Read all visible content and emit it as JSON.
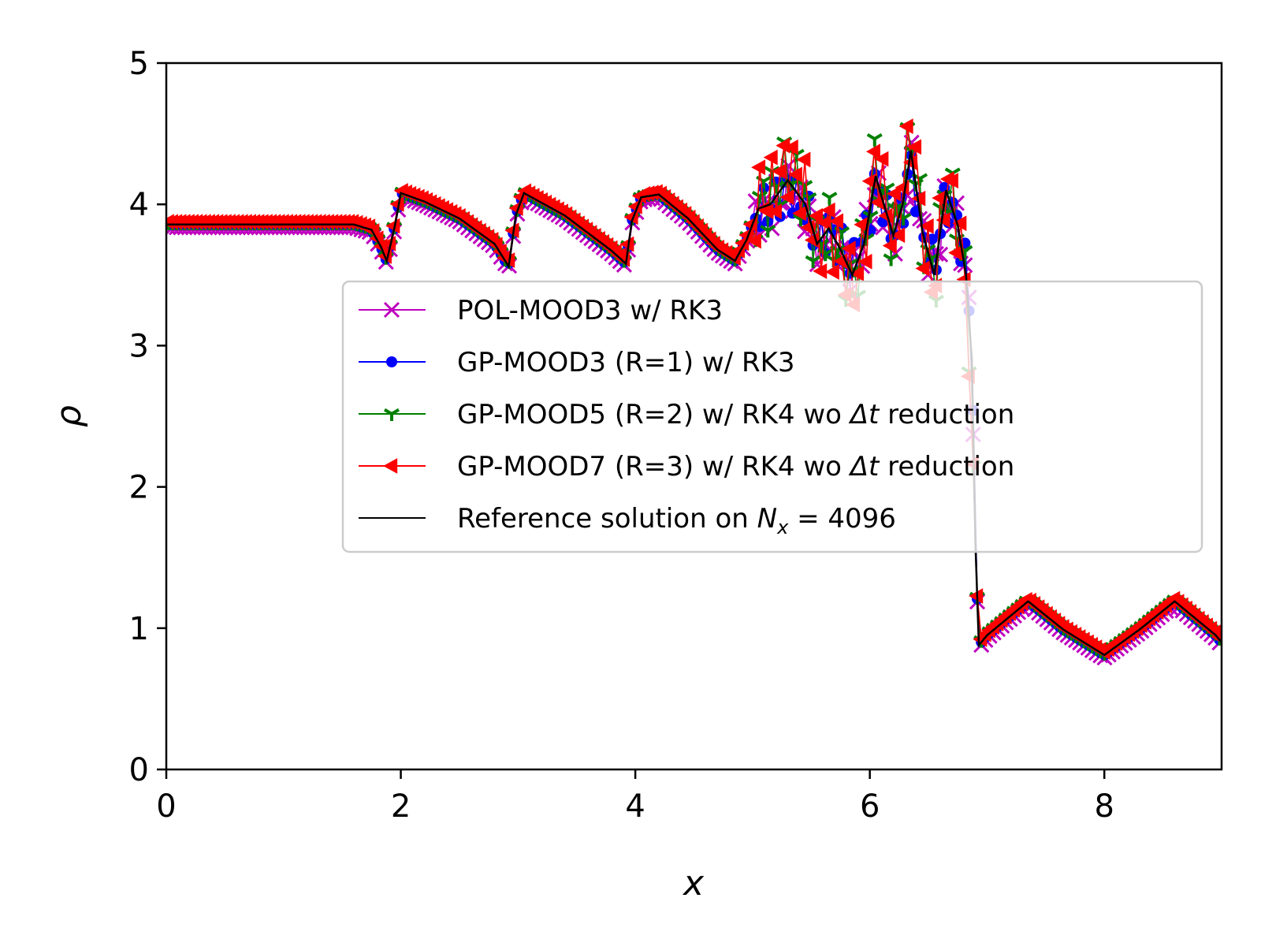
{
  "chart_data": {
    "type": "line",
    "title": "",
    "xlabel": "x",
    "ylabel": "ρ",
    "xlim": [
      0,
      9
    ],
    "ylim": [
      0,
      5
    ],
    "xticks": [
      0,
      2,
      4,
      6,
      8
    ],
    "yticks": [
      0,
      1,
      2,
      3,
      4,
      5
    ],
    "grid": false,
    "legend_position": "center-right",
    "legend": [
      {
        "label": "POL-MOOD3 w/ RK3",
        "color": "#bf00bf",
        "marker": "x"
      },
      {
        "label": "GP-MOOD3 (R=1) w/ RK3",
        "color": "#0000ff",
        "marker": "circle"
      },
      {
        "label_parts": [
          "GP-MOOD5 (R=2) w/ RK4 wo ",
          "Δt",
          " reduction"
        ],
        "color": "#008000",
        "marker": "tri-down"
      },
      {
        "label_parts": [
          "GP-MOOD7 (R=3) w/ RK4 wo ",
          "Δt",
          " reduction"
        ],
        "color": "#ff0000",
        "marker": "tri-left"
      },
      {
        "label_parts": [
          "Reference solution on ",
          "N",
          "x",
          " = 4096"
        ],
        "color": "#000000",
        "marker": "none"
      }
    ],
    "series": [
      {
        "name": "POL-MOOD3 w/ RK3",
        "color": "#bf00bf",
        "marker": "x",
        "amplitude": 0.9,
        "offset": -0.02
      },
      {
        "name": "GP-MOOD3 (R=1) w/ RK3",
        "color": "#0000ff",
        "marker": "circle",
        "amplitude": 0.85,
        "offset": 0.0
      },
      {
        "name": "GP-MOOD5 (R=2) w/ RK4 wo Δt reduction",
        "color": "#008000",
        "marker": "tri-down",
        "amplitude": 1.25,
        "offset": 0.01
      },
      {
        "name": "GP-MOOD7 (R=3) w/ RK4 wo Δt reduction",
        "color": "#ff0000",
        "marker": "tri-left",
        "amplitude": 1.35,
        "offset": 0.02
      },
      {
        "name": "Reference solution on N_x = 4096",
        "color": "#000000",
        "marker": "none",
        "amplitude": 1.0,
        "offset": 0.0
      }
    ],
    "reference_points": [
      [
        0.0,
        3.857
      ],
      [
        1.6,
        3.857
      ],
      [
        1.75,
        3.82
      ],
      [
        1.83,
        3.7
      ],
      [
        1.88,
        3.6
      ],
      [
        1.95,
        3.85
      ],
      [
        2.0,
        4.08
      ],
      [
        2.2,
        4.02
      ],
      [
        2.5,
        3.9
      ],
      [
        2.8,
        3.72
      ],
      [
        2.92,
        3.56
      ],
      [
        2.98,
        3.92
      ],
      [
        3.05,
        4.08
      ],
      [
        3.4,
        3.92
      ],
      [
        3.8,
        3.67
      ],
      [
        3.92,
        3.58
      ],
      [
        3.97,
        3.88
      ],
      [
        4.05,
        4.05
      ],
      [
        4.2,
        4.07
      ],
      [
        4.45,
        3.9
      ],
      [
        4.7,
        3.68
      ],
      [
        4.85,
        3.6
      ],
      [
        4.95,
        3.75
      ],
      [
        5.05,
        3.97
      ],
      [
        5.15,
        4.0
      ],
      [
        5.3,
        4.17
      ],
      [
        5.45,
        4.0
      ],
      [
        5.55,
        3.72
      ],
      [
        5.65,
        3.83
      ],
      [
        5.75,
        3.68
      ],
      [
        5.85,
        3.5
      ],
      [
        5.95,
        3.72
      ],
      [
        6.05,
        4.2
      ],
      [
        6.12,
        4.0
      ],
      [
        6.2,
        3.78
      ],
      [
        6.28,
        4.0
      ],
      [
        6.35,
        4.38
      ],
      [
        6.45,
        3.8
      ],
      [
        6.55,
        3.5
      ],
      [
        6.65,
        4.1
      ],
      [
        6.75,
        3.85
      ],
      [
        6.82,
        3.5
      ],
      [
        6.87,
        2.9
      ],
      [
        6.9,
        1.6
      ],
      [
        6.93,
        0.88
      ],
      [
        7.0,
        0.95
      ],
      [
        7.35,
        1.19
      ],
      [
        7.65,
        0.99
      ],
      [
        8.0,
        0.81
      ],
      [
        8.3,
        0.99
      ],
      [
        8.6,
        1.19
      ],
      [
        8.95,
        0.95
      ],
      [
        9.0,
        0.9
      ]
    ]
  }
}
